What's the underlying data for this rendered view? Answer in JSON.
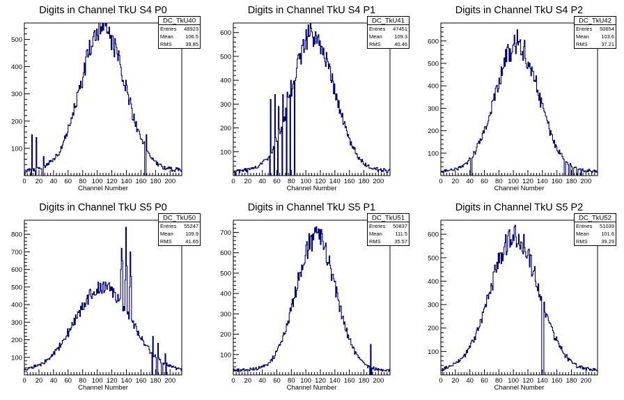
{
  "chart_data": [
    {
      "type": "histogram",
      "title": "Digits in Channel TkU S4 P0",
      "xlabel": "Channel Number",
      "ylabel": "",
      "xlim": [
        0,
        216
      ],
      "ylim": [
        0,
        560
      ],
      "xticks": [
        0,
        20,
        40,
        60,
        80,
        100,
        120,
        140,
        160,
        180,
        200
      ],
      "yticks": [
        100,
        200,
        300,
        400,
        500
      ],
      "color": "#00007f",
      "stats": {
        "name": "DC_TkU40",
        "rows": [
          {
            "label": "Entries",
            "value": "48923"
          },
          {
            "label": "Mean",
            "value": "106.5"
          },
          {
            "label": "RMS",
            "value": "39.85"
          }
        ]
      },
      "shape": {
        "peak": 520,
        "mu": 108,
        "sigma": 30,
        "floor": 25,
        "tail_decay": 0.012
      },
      "overrides": {
        "0": 0,
        "9": 0,
        "10": 150,
        "15": 0,
        "16": 140,
        "24": 0,
        "25": 0,
        "26": 70,
        "165": 0,
        "166": 0,
        "167": 150
      }
    },
    {
      "type": "histogram",
      "title": "Digits in Channel TkU S4 P1",
      "xlabel": "Channel Number",
      "ylabel": "",
      "xlim": [
        0,
        216
      ],
      "ylim": [
        0,
        640
      ],
      "xticks": [
        0,
        20,
        40,
        60,
        80,
        100,
        120,
        140,
        160,
        180,
        200
      ],
      "yticks": [
        100,
        200,
        300,
        400,
        500,
        600
      ],
      "color": "#00007f",
      "stats": {
        "name": "DC_TkU41",
        "rows": [
          {
            "label": "Entries",
            "value": "47451"
          },
          {
            "label": "Mean",
            "value": "109.3"
          },
          {
            "label": "RMS",
            "value": "40.46"
          }
        ]
      },
      "shape": {
        "peak": 570,
        "mu": 110,
        "sigma": 29,
        "floor": 25,
        "tail_decay": 0.012
      },
      "overrides": {
        "2": 0,
        "50": 0,
        "51": 320,
        "56": 0,
        "57": 340,
        "61": 0,
        "62": 290,
        "67": 0,
        "68": 340,
        "73": 0,
        "74": 350,
        "78": 0,
        "79": 400,
        "84": 0
      }
    },
    {
      "type": "histogram",
      "title": "Digits in Channel TkU S4 P2",
      "xlabel": "Channel Number",
      "ylabel": "",
      "xlim": [
        0,
        216
      ],
      "ylim": [
        0,
        680
      ],
      "xticks": [
        0,
        20,
        40,
        60,
        80,
        100,
        120,
        140,
        160,
        180,
        200
      ],
      "yticks": [
        100,
        200,
        300,
        400,
        500,
        600
      ],
      "color": "#00007f",
      "stats": {
        "name": "DC_TkU42",
        "rows": [
          {
            "label": "Entries",
            "value": "50654"
          },
          {
            "label": "Mean",
            "value": "103.6"
          },
          {
            "label": "RMS",
            "value": "37.21"
          }
        ]
      },
      "shape": {
        "peak": 560,
        "mu": 105,
        "sigma": 30,
        "floor": 25,
        "tail_decay": 0.014
      },
      "overrides": {
        "41": 0,
        "42": 0,
        "105": 650,
        "170": 0,
        "171": 0,
        "176": 0,
        "177": 0,
        "181": 0,
        "182": 0,
        "187": 0,
        "188": 0,
        "193": 0
      }
    },
    {
      "type": "histogram",
      "title": "Digits in Channel TkU S5 P0",
      "xlabel": "Channel Number",
      "ylabel": "",
      "xlim": [
        0,
        216
      ],
      "ylim": [
        0,
        880
      ],
      "xticks": [
        0,
        20,
        40,
        60,
        80,
        100,
        120,
        140,
        160,
        180,
        200
      ],
      "yticks": [
        100,
        200,
        300,
        400,
        500,
        600,
        700,
        800
      ],
      "color": "#00007f",
      "stats": {
        "name": "DC_TkU50",
        "rows": [
          {
            "label": "Entries",
            "value": "55247"
          },
          {
            "label": "Mean",
            "value": "109.9"
          },
          {
            "label": "RMS",
            "value": "41.65"
          }
        ]
      },
      "shape": {
        "peak": 470,
        "mu": 108,
        "sigma": 38,
        "floor": 30,
        "tail_decay": 0.012
      },
      "overrides": {
        "132": 600,
        "133": 720,
        "134": 650,
        "138": 540,
        "139": 840,
        "140": 620,
        "144": 500,
        "145": 700,
        "146": 560,
        "175": 0,
        "176": 220,
        "181": 0,
        "182": 0,
        "183": 180,
        "188": 0,
        "189": 0,
        "193": 120,
        "194": 0
      }
    },
    {
      "type": "histogram",
      "title": "Digits in Channel TkU S5 P1",
      "xlabel": "Channel Number",
      "ylabel": "",
      "xlim": [
        0,
        216
      ],
      "ylim": [
        0,
        760
      ],
      "xticks": [
        0,
        20,
        40,
        60,
        80,
        100,
        120,
        140,
        160,
        180,
        200
      ],
      "yticks": [
        100,
        200,
        300,
        400,
        500,
        600,
        700
      ],
      "color": "#00007f",
      "stats": {
        "name": "DC_TkU51",
        "rows": [
          {
            "label": "Entries",
            "value": "50837"
          },
          {
            "label": "Mean",
            "value": "111.5"
          },
          {
            "label": "RMS",
            "value": "35.57"
          }
        ]
      },
      "shape": {
        "peak": 650,
        "mu": 114,
        "sigma": 27,
        "floor": 30,
        "tail_decay": 0.012
      },
      "overrides": {
        "188": 0,
        "189": 150,
        "190": 0
      }
    },
    {
      "type": "histogram",
      "title": "Digits in Channel TkU S5 P2",
      "xlabel": "Channel Number",
      "ylabel": "",
      "xlim": [
        0,
        216
      ],
      "ylim": [
        0,
        660
      ],
      "xticks": [
        0,
        20,
        40,
        60,
        80,
        100,
        120,
        140,
        160,
        180,
        200
      ],
      "yticks": [
        100,
        200,
        300,
        400,
        500,
        600
      ],
      "color": "#00007f",
      "stats": {
        "name": "DC_TkU52",
        "rows": [
          {
            "label": "Entries",
            "value": "51039"
          },
          {
            "label": "Mean",
            "value": "101.6"
          },
          {
            "label": "RMS",
            "value": "39.29"
          }
        ]
      },
      "shape": {
        "peak": 570,
        "mu": 102,
        "sigma": 33,
        "floor": 25,
        "tail_decay": 0.013
      },
      "overrides": {
        "0": 0,
        "1": 0,
        "107": 600,
        "139": 0,
        "140": 0,
        "141": 0
      }
    }
  ]
}
